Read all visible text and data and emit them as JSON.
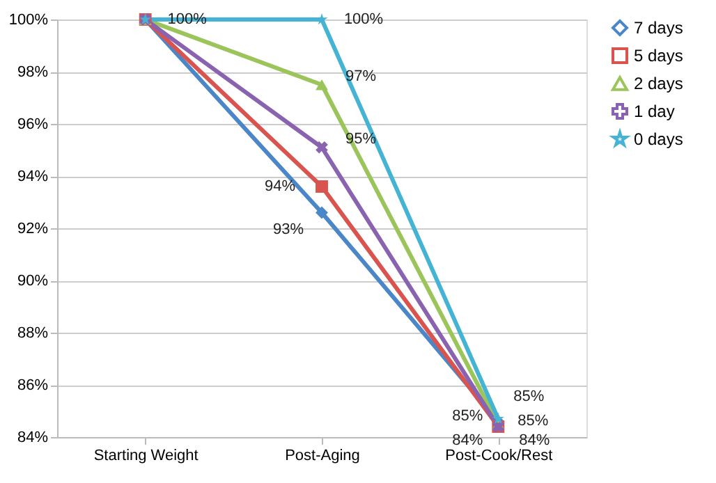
{
  "chart_data": {
    "type": "line",
    "categories": [
      "Starting Weight",
      "Post-Aging",
      "Post-Cook/Rest"
    ],
    "ylim": [
      84,
      100
    ],
    "yticks": [
      {
        "value": 84,
        "label": "84%"
      },
      {
        "value": 86,
        "label": "86%"
      },
      {
        "value": 88,
        "label": "88%"
      },
      {
        "value": 90,
        "label": "90%"
      },
      {
        "value": 92,
        "label": "92%"
      },
      {
        "value": 94,
        "label": "94%"
      },
      {
        "value": 96,
        "label": "96%"
      },
      {
        "value": 98,
        "label": "98%"
      },
      {
        "value": 100,
        "label": "100%"
      }
    ],
    "grid": "y",
    "legend": "right",
    "series": [
      {
        "name": "7 days",
        "color": "#4a86c8",
        "marker": "diamond",
        "values": [
          100,
          92.6,
          84.6
        ],
        "value_labels": [
          null,
          "93%",
          "85%"
        ]
      },
      {
        "name": "5 days",
        "color": "#d9534f",
        "marker": "square",
        "values": [
          100,
          93.6,
          84.4
        ],
        "value_labels": [
          null,
          "94%",
          "84%"
        ]
      },
      {
        "name": "2 days",
        "color": "#9bc45a",
        "marker": "triangle",
        "values": [
          100,
          97.5,
          84.5
        ],
        "value_labels": [
          null,
          "97%",
          "85%"
        ]
      },
      {
        "name": "1 day",
        "color": "#8a63b0",
        "marker": "cross",
        "values": [
          100,
          95.1,
          84.4
        ],
        "value_labels": [
          null,
          "95%",
          "84%"
        ]
      },
      {
        "name": "0 days",
        "color": "#45b4d4",
        "marker": "star",
        "values": [
          100,
          100,
          84.7
        ],
        "value_labels": [
          "100%",
          "100%",
          "85%"
        ]
      }
    ]
  }
}
